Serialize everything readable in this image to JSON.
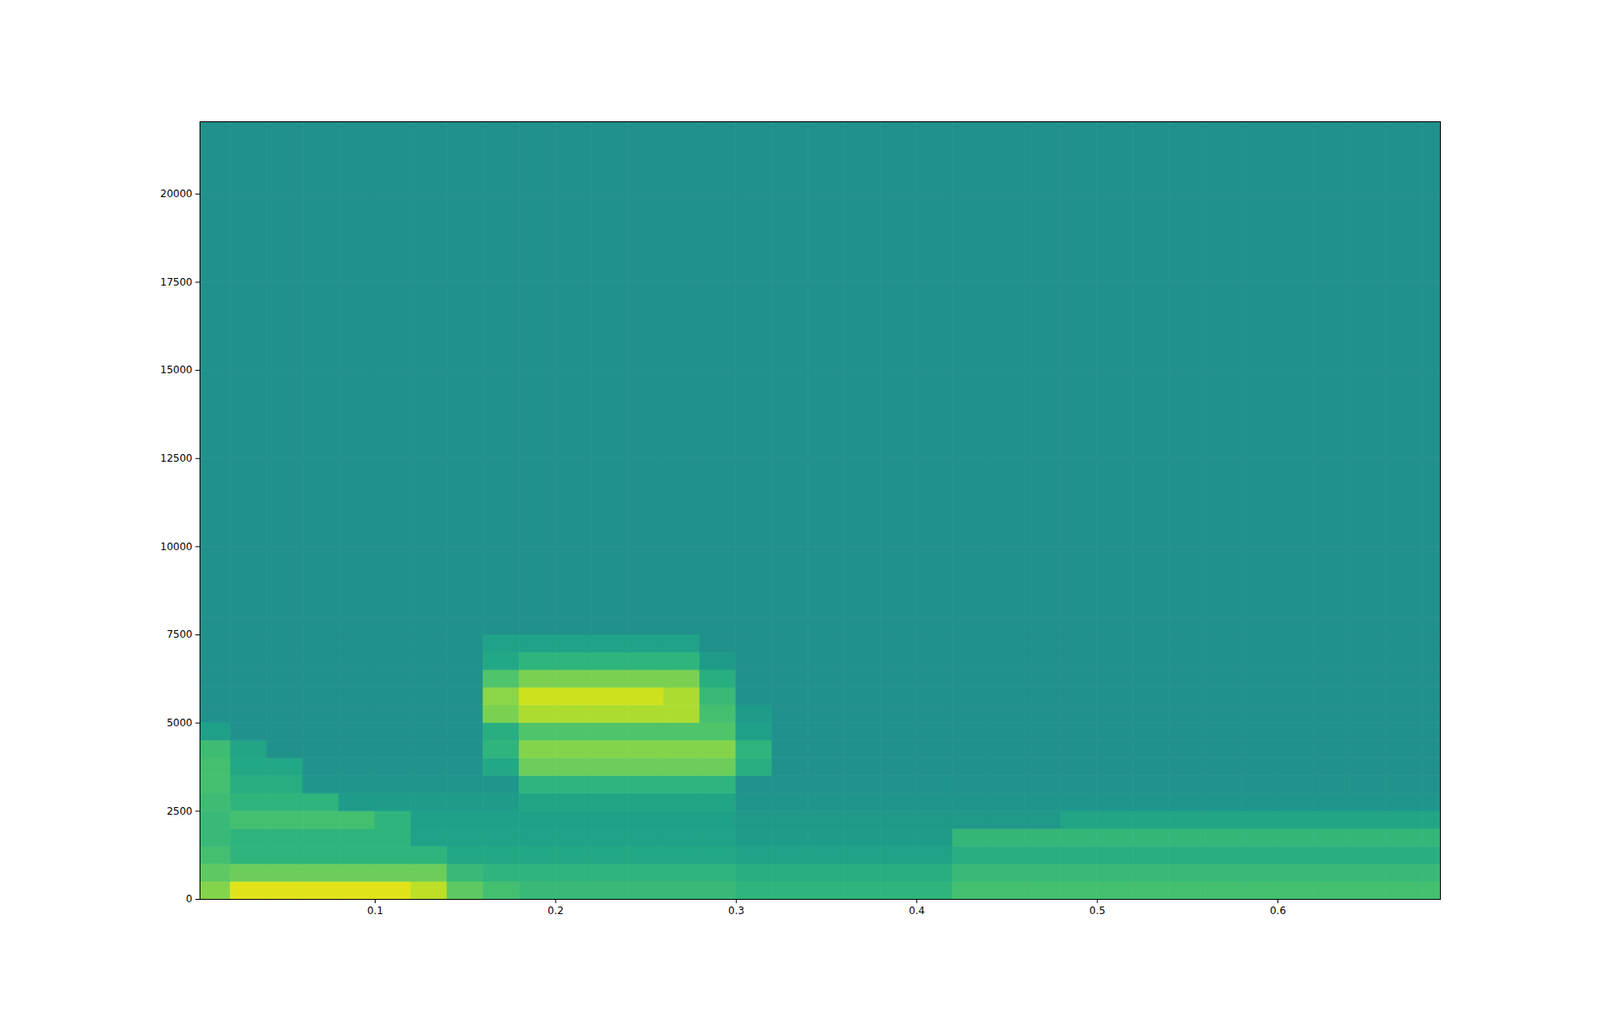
{
  "chart_data": {
    "type": "heatmap",
    "color": "viridis",
    "xlim": [
      0.003,
      0.69
    ],
    "ylim": [
      0,
      22050
    ],
    "xticks": [
      0.1,
      0.2,
      0.3,
      0.4,
      0.5,
      0.6
    ],
    "yticks": [
      0,
      2500,
      5000,
      7500,
      10000,
      12500,
      15000,
      17500,
      20000
    ],
    "zlim": [
      -140,
      -60
    ],
    "x_edges": [
      0.003,
      0.02,
      0.04,
      0.06,
      0.08,
      0.1,
      0.12,
      0.14,
      0.16,
      0.18,
      0.2,
      0.22,
      0.24,
      0.26,
      0.28,
      0.3,
      0.32,
      0.34,
      0.36,
      0.38,
      0.4,
      0.42,
      0.44,
      0.46,
      0.48,
      0.5,
      0.52,
      0.54,
      0.56,
      0.58,
      0.6,
      0.62,
      0.64,
      0.66,
      0.68,
      0.69
    ],
    "y_edges": [
      0,
      500,
      1000,
      1500,
      2000,
      2500,
      3000,
      3500,
      4000,
      4500,
      5000,
      5500,
      6000,
      6500,
      7000,
      7500,
      8000,
      10000,
      12500,
      15000,
      17500,
      20000,
      22050
    ],
    "z": [
      [
        -75,
        -64,
        -64,
        -64,
        -64,
        -64,
        -68,
        -80,
        -84,
        -86,
        -86,
        -86,
        -86,
        -86,
        -86,
        -88,
        -88,
        -88,
        -88,
        -88,
        -88,
        -84,
        -84,
        -84,
        -84,
        -84,
        -84,
        -84,
        -84,
        -84,
        -84,
        -84,
        -84,
        -84,
        -84
      ],
      [
        -80,
        -78,
        -78,
        -78,
        -78,
        -78,
        -78,
        -86,
        -88,
        -88,
        -88,
        -88,
        -88,
        -88,
        -88,
        -90,
        -90,
        -90,
        -90,
        -90,
        -90,
        -86,
        -86,
        -86,
        -86,
        -86,
        -86,
        -86,
        -86,
        -86,
        -86,
        -86,
        -86,
        -86,
        -86
      ],
      [
        -84,
        -88,
        -88,
        -88,
        -88,
        -88,
        -88,
        -92,
        -92,
        -92,
        -92,
        -92,
        -92,
        -92,
        -92,
        -94,
        -94,
        -94,
        -94,
        -94,
        -94,
        -90,
        -90,
        -90,
        -90,
        -90,
        -90,
        -90,
        -90,
        -90,
        -90,
        -90,
        -90,
        -90,
        -90
      ],
      [
        -86,
        -88,
        -88,
        -88,
        -88,
        -88,
        -94,
        -94,
        -94,
        -94,
        -94,
        -94,
        -94,
        -94,
        -94,
        -96,
        -96,
        -96,
        -96,
        -96,
        -96,
        -87,
        -87,
        -87,
        -87,
        -87,
        -87,
        -87,
        -87,
        -87,
        -87,
        -87,
        -87,
        -87,
        -87
      ],
      [
        -86,
        -84,
        -84,
        -84,
        -84,
        -88,
        -95,
        -95,
        -95,
        -95,
        -95,
        -95,
        -95,
        -95,
        -95,
        -97,
        -97,
        -97,
        -97,
        -97,
        -97,
        -97,
        -97,
        -97,
        -93,
        -93,
        -93,
        -93,
        -93,
        -93,
        -93,
        -93,
        -93,
        -93,
        -93
      ],
      [
        -85,
        -88,
        -88,
        -88,
        -96,
        -96,
        -96,
        -96,
        -96,
        -93,
        -93,
        -93,
        -93,
        -93,
        -93,
        -98,
        -98,
        -98,
        -98,
        -98,
        -98,
        -98,
        -98,
        -98,
        -98,
        -98,
        -98,
        -98,
        -98,
        -98,
        -98,
        -98,
        -98,
        -98,
        -98
      ],
      [
        -84,
        -90,
        -90,
        -98,
        -98,
        -98,
        -98,
        -98,
        -98,
        -88,
        -88,
        -88,
        -88,
        -88,
        -88,
        -99,
        -99,
        -99,
        -99,
        -99,
        -99,
        -99,
        -99,
        -99,
        -99,
        -99,
        -99,
        -99,
        -99,
        -99,
        -99,
        -99,
        -99,
        -99,
        -99
      ],
      [
        -84,
        -92,
        -92,
        -99,
        -99,
        -99,
        -99,
        -99,
        -92,
        -78,
        -78,
        -78,
        -78,
        -78,
        -78,
        -90,
        -100,
        -100,
        -100,
        -100,
        -100,
        -100,
        -100,
        -100,
        -100,
        -100,
        -100,
        -100,
        -100,
        -100,
        -100,
        -100,
        -100,
        -100,
        -100
      ],
      [
        -85,
        -93,
        -100,
        -100,
        -100,
        -100,
        -100,
        -100,
        -88,
        -75,
        -75,
        -75,
        -75,
        -75,
        -75,
        -88,
        -100,
        -100,
        -100,
        -100,
        -100,
        -100,
        -100,
        -100,
        -100,
        -100,
        -100,
        -100,
        -100,
        -100,
        -100,
        -100,
        -100,
        -100,
        -100
      ],
      [
        -95,
        -100,
        -100,
        -100,
        -100,
        -100,
        -100,
        -100,
        -90,
        -82,
        -82,
        -82,
        -82,
        -82,
        -82,
        -95,
        -100,
        -100,
        -100,
        -100,
        -100,
        -100,
        -100,
        -100,
        -100,
        -100,
        -100,
        -100,
        -100,
        -100,
        -100,
        -100,
        -100,
        -100,
        -100
      ],
      [
        -100,
        -100,
        -100,
        -100,
        -100,
        -100,
        -100,
        -100,
        -76,
        -70,
        -70,
        -70,
        -70,
        -70,
        -84,
        -96,
        -100,
        -100,
        -100,
        -100,
        -100,
        -100,
        -100,
        -100,
        -100,
        -100,
        -100,
        -100,
        -100,
        -100,
        -100,
        -100,
        -100,
        -100,
        -100
      ],
      [
        -100,
        -100,
        -100,
        -100,
        -100,
        -100,
        -100,
        -100,
        -74,
        -66,
        -66,
        -66,
        -66,
        -70,
        -86,
        -100,
        -100,
        -100,
        -100,
        -100,
        -100,
        -100,
        -100,
        -100,
        -100,
        -100,
        -100,
        -100,
        -100,
        -100,
        -100,
        -100,
        -100,
        -100,
        -100
      ],
      [
        -100,
        -100,
        -100,
        -100,
        -100,
        -100,
        -100,
        -100,
        -82,
        -76,
        -76,
        -76,
        -76,
        -76,
        -90,
        -100,
        -100,
        -100,
        -100,
        -100,
        -100,
        -100,
        -100,
        -100,
        -100,
        -100,
        -100,
        -100,
        -100,
        -100,
        -100,
        -100,
        -100,
        -100,
        -100
      ],
      [
        -100,
        -100,
        -100,
        -100,
        -100,
        -100,
        -100,
        -100,
        -92,
        -88,
        -88,
        -88,
        -88,
        -88,
        -96,
        -100,
        -100,
        -100,
        -100,
        -100,
        -100,
        -100,
        -100,
        -100,
        -100,
        -100,
        -100,
        -100,
        -100,
        -100,
        -100,
        -100,
        -100,
        -100,
        -100
      ],
      [
        -100,
        -100,
        -100,
        -100,
        -100,
        -100,
        -100,
        -100,
        -94,
        -94,
        -94,
        -94,
        -94,
        -94,
        -100,
        -100,
        -100,
        -100,
        -100,
        -100,
        -100,
        -100,
        -100,
        -100,
        -100,
        -100,
        -100,
        -100,
        -100,
        -100,
        -100,
        -100,
        -100,
        -100,
        -100
      ],
      [
        -100,
        -100,
        -100,
        -100,
        -100,
        -100,
        -100,
        -100,
        -100,
        -100,
        -100,
        -100,
        -100,
        -100,
        -100,
        -100,
        -100,
        -100,
        -100,
        -100,
        -100,
        -100,
        -100,
        -100,
        -100,
        -100,
        -100,
        -100,
        -100,
        -100,
        -100,
        -100,
        -100,
        -100,
        -100
      ],
      [
        -100,
        -100,
        -100,
        -100,
        -100,
        -100,
        -100,
        -100,
        -100,
        -100,
        -100,
        -100,
        -100,
        -100,
        -100,
        -100,
        -100,
        -100,
        -100,
        -100,
        -100,
        -100,
        -100,
        -100,
        -100,
        -100,
        -100,
        -100,
        -100,
        -100,
        -100,
        -100,
        -100,
        -100,
        -100
      ],
      [
        -100,
        -100,
        -100,
        -100,
        -100,
        -100,
        -100,
        -100,
        -100,
        -100,
        -100,
        -100,
        -100,
        -100,
        -100,
        -100,
        -100,
        -100,
        -100,
        -100,
        -100,
        -100,
        -100,
        -100,
        -100,
        -100,
        -100,
        -100,
        -100,
        -100,
        -100,
        -100,
        -100,
        -100,
        -100
      ],
      [
        -100,
        -100,
        -100,
        -100,
        -100,
        -100,
        -100,
        -100,
        -100,
        -100,
        -100,
        -100,
        -100,
        -100,
        -100,
        -100,
        -100,
        -100,
        -100,
        -100,
        -100,
        -100,
        -100,
        -100,
        -100,
        -100,
        -100,
        -100,
        -100,
        -100,
        -100,
        -100,
        -100,
        -100,
        -100
      ],
      [
        -100,
        -100,
        -100,
        -100,
        -100,
        -100,
        -100,
        -100,
        -100,
        -100,
        -100,
        -100,
        -100,
        -100,
        -100,
        -100,
        -100,
        -100,
        -100,
        -100,
        -100,
        -100,
        -100,
        -100,
        -100,
        -100,
        -100,
        -100,
        -100,
        -100,
        -100,
        -100,
        -100,
        -100,
        -100
      ],
      [
        -100,
        -100,
        -100,
        -100,
        -100,
        -100,
        -100,
        -100,
        -100,
        -100,
        -100,
        -100,
        -100,
        -100,
        -100,
        -100,
        -100,
        -100,
        -100,
        -100,
        -100,
        -100,
        -100,
        -100,
        -100,
        -100,
        -100,
        -100,
        -100,
        -100,
        -100,
        -100,
        -100,
        -100,
        -100
      ],
      [
        -100,
        -100,
        -100,
        -100,
        -100,
        -100,
        -100,
        -100,
        -100,
        -100,
        -100,
        -100,
        -100,
        -100,
        -100,
        -100,
        -100,
        -100,
        -100,
        -100,
        -100,
        -100,
        -100,
        -100,
        -100,
        -100,
        -100,
        -100,
        -100,
        -100,
        -100,
        -100,
        -100,
        -100,
        -100
      ]
    ]
  }
}
